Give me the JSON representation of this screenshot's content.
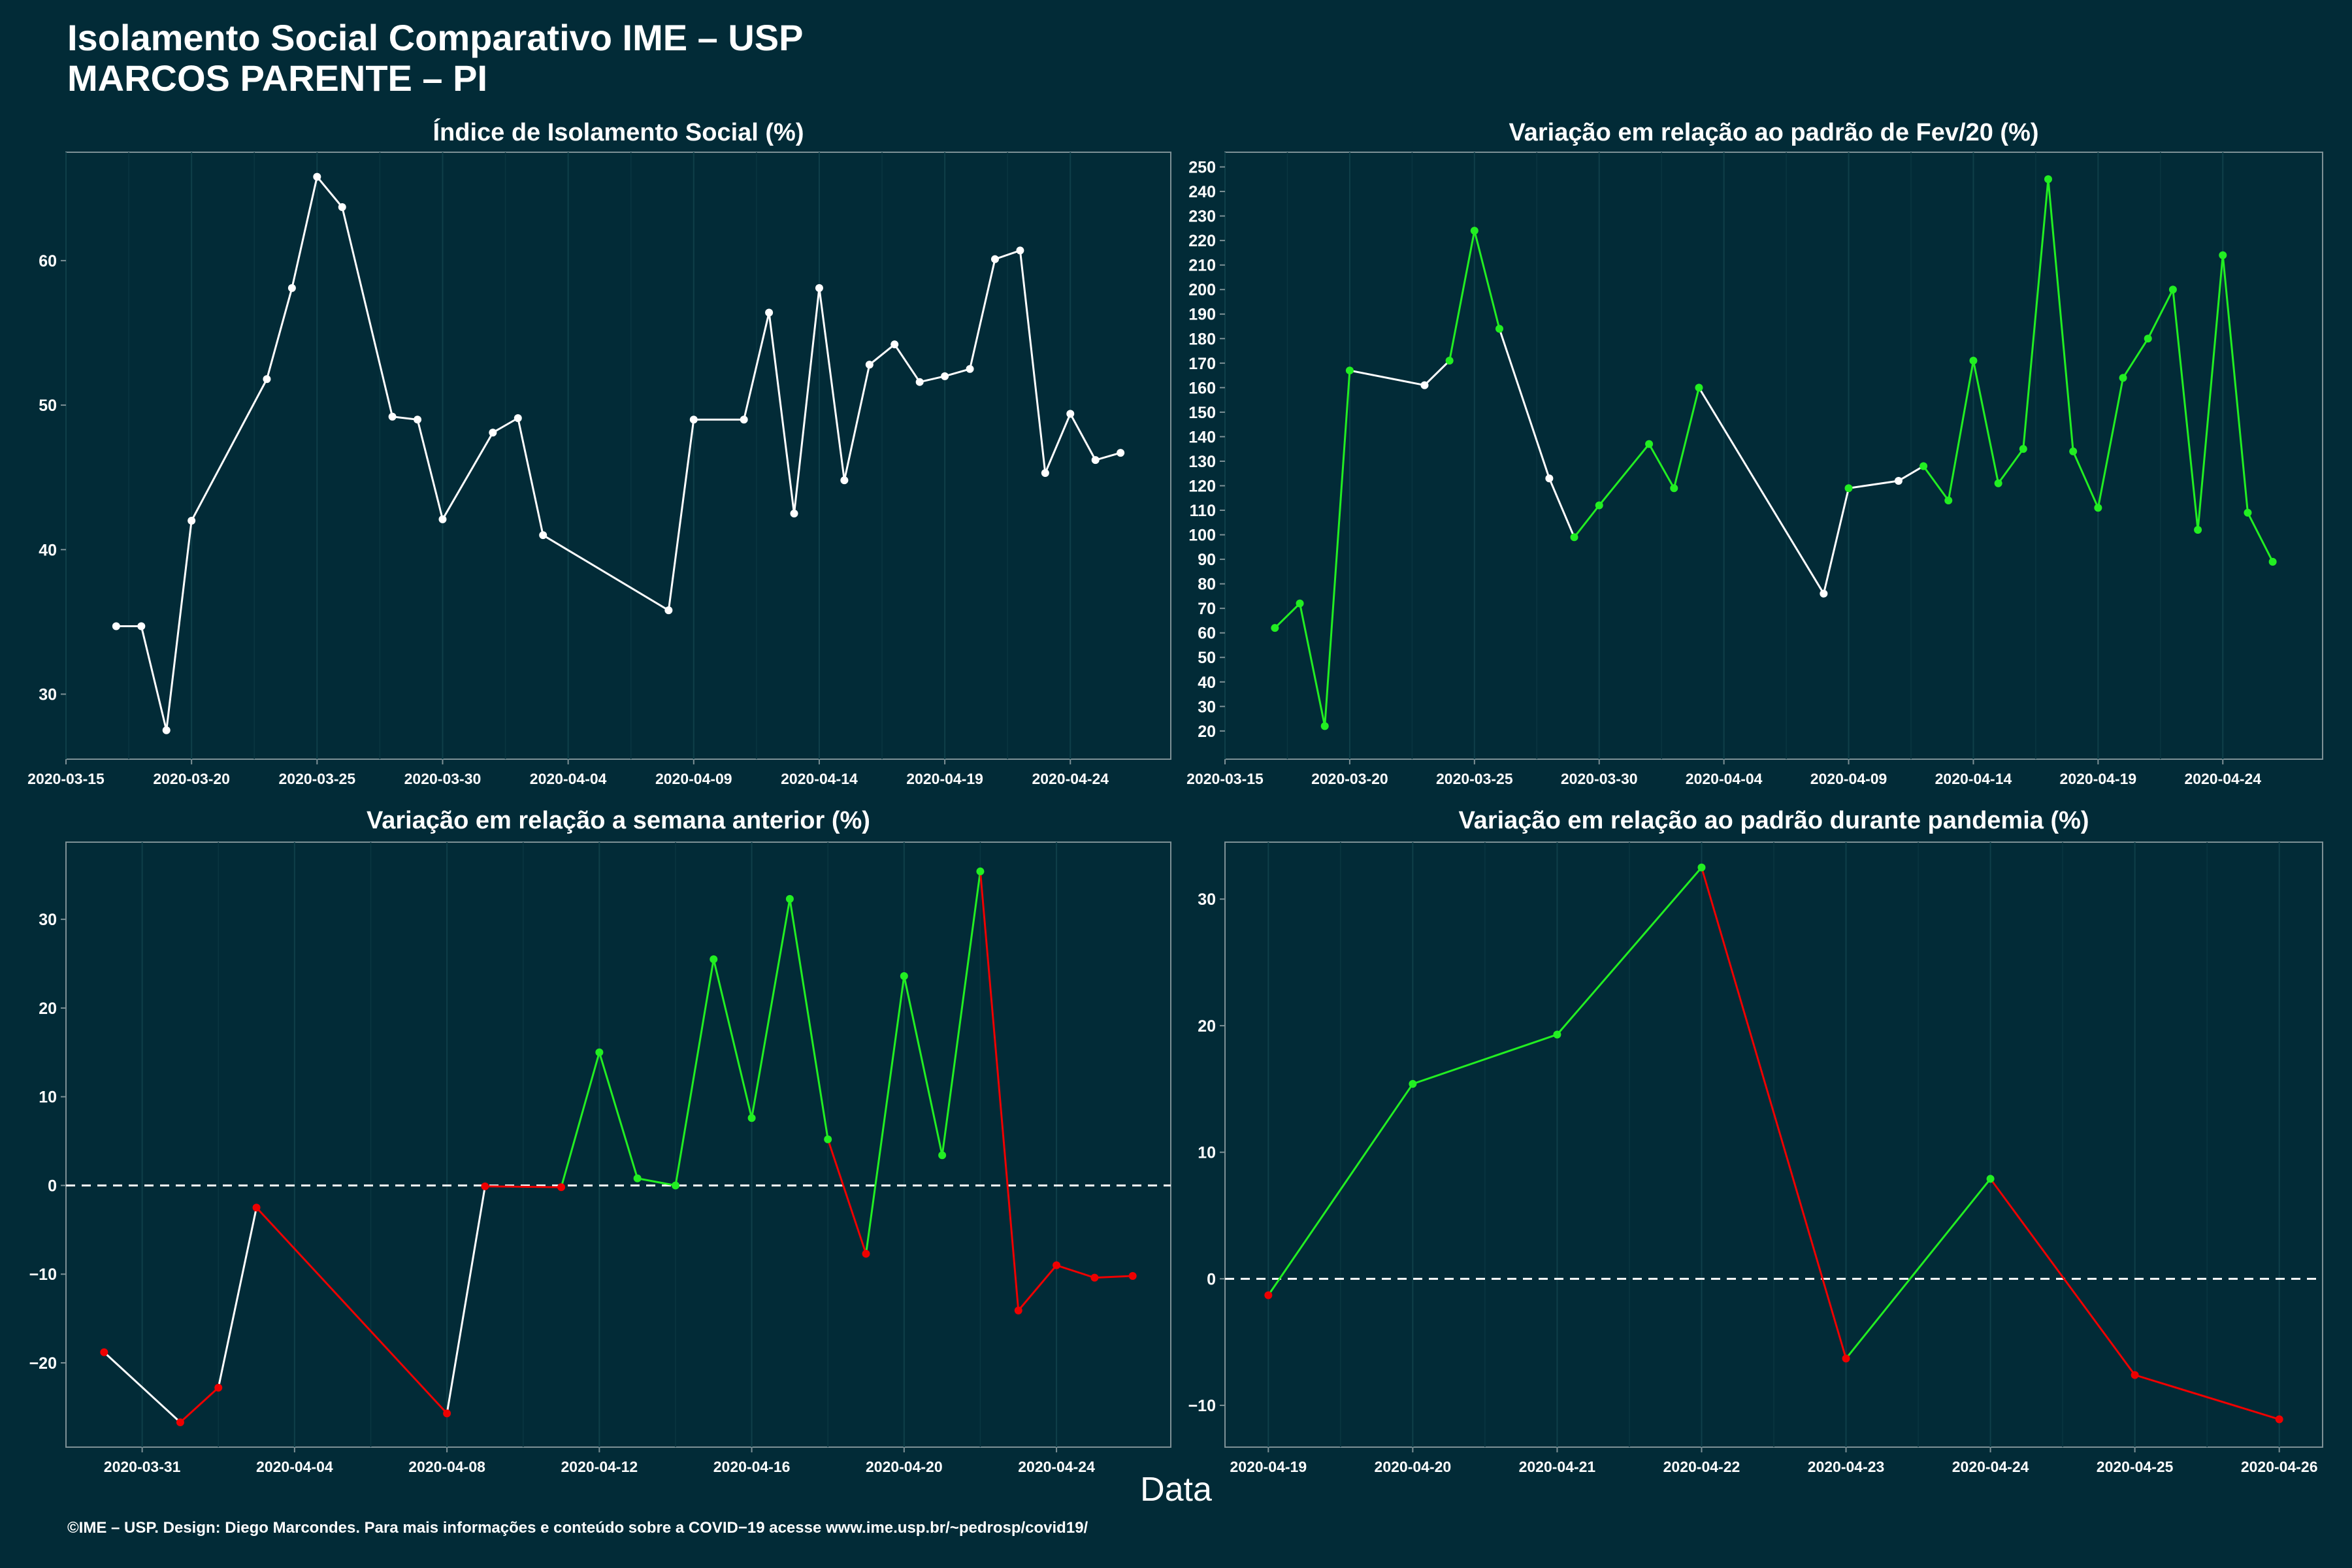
{
  "title_line1": "Isolamento Social Comparativo IME – USP",
  "title_line2": "MARCOS PARENTE – PI",
  "xlabel": "Data",
  "footer": "©IME – USP. Design: Diego Marcondes. Para mais informações e conteúdo sobre a COVID−19 acesse www.ime.usp.br/~pedrosp/covid19/",
  "colors": {
    "background": "#022b37",
    "white_line": "#ffffff",
    "increase": "#22ee22",
    "decrease": "#ee0000"
  },
  "chart_data": [
    {
      "type": "line",
      "title": "Índice de Isolamento Social (%)",
      "xlim": [
        "2020-03-15",
        "2020-04-28"
      ],
      "ylim": [
        25.5,
        67.5
      ],
      "xticks": [
        "2020-03-15",
        "2020-03-20",
        "2020-03-25",
        "2020-03-30",
        "2020-04-04",
        "2020-04-09",
        "2020-04-14",
        "2020-04-19",
        "2020-04-24"
      ],
      "yticks": [
        30,
        40,
        50,
        60
      ],
      "points": [
        {
          "x": "2020-03-17",
          "y": 34.7,
          "c": "w"
        },
        {
          "x": "2020-03-18",
          "y": 34.7,
          "c": "w"
        },
        {
          "x": "2020-03-19",
          "y": 27.5,
          "c": "w"
        },
        {
          "x": "2020-03-20",
          "y": 42.0,
          "c": "w"
        },
        {
          "x": "2020-03-23",
          "y": 51.8,
          "c": "w"
        },
        {
          "x": "2020-03-24",
          "y": 58.1,
          "c": "w"
        },
        {
          "x": "2020-03-25",
          "y": 65.8,
          "c": "w"
        },
        {
          "x": "2020-03-26",
          "y": 63.7,
          "c": "w"
        },
        {
          "x": "2020-03-28",
          "y": 49.2,
          "c": "w"
        },
        {
          "x": "2020-03-29",
          "y": 49.0,
          "c": "w"
        },
        {
          "x": "2020-03-30",
          "y": 42.1,
          "c": "w"
        },
        {
          "x": "2020-04-01",
          "y": 48.1,
          "c": "w"
        },
        {
          "x": "2020-04-02",
          "y": 49.1,
          "c": "w"
        },
        {
          "x": "2020-04-03",
          "y": 41.0,
          "c": "w"
        },
        {
          "x": "2020-04-08",
          "y": 35.8,
          "c": "w"
        },
        {
          "x": "2020-04-09",
          "y": 49.0,
          "c": "w"
        },
        {
          "x": "2020-04-11",
          "y": 49.0,
          "c": "w"
        },
        {
          "x": "2020-04-12",
          "y": 56.4,
          "c": "w"
        },
        {
          "x": "2020-04-13",
          "y": 42.5,
          "c": "w"
        },
        {
          "x": "2020-04-14",
          "y": 58.1,
          "c": "w"
        },
        {
          "x": "2020-04-15",
          "y": 44.8,
          "c": "w"
        },
        {
          "x": "2020-04-16",
          "y": 52.8,
          "c": "w"
        },
        {
          "x": "2020-04-17",
          "y": 54.2,
          "c": "w"
        },
        {
          "x": "2020-04-18",
          "y": 51.6,
          "c": "w"
        },
        {
          "x": "2020-04-19",
          "y": 52.0,
          "c": "w"
        },
        {
          "x": "2020-04-20",
          "y": 52.5,
          "c": "w"
        },
        {
          "x": "2020-04-21",
          "y": 60.1,
          "c": "w"
        },
        {
          "x": "2020-04-22",
          "y": 60.7,
          "c": "w"
        },
        {
          "x": "2020-04-23",
          "y": 45.3,
          "c": "w"
        },
        {
          "x": "2020-04-24",
          "y": 49.4,
          "c": "w"
        },
        {
          "x": "2020-04-25",
          "y": 46.2,
          "c": "w"
        },
        {
          "x": "2020-04-26",
          "y": 46.7,
          "c": "w"
        }
      ],
      "hline": null
    },
    {
      "type": "line",
      "title": "Variação em relação ao padrão de Fev/20 (%)",
      "xlim": [
        "2020-03-15",
        "2020-04-28"
      ],
      "ylim": [
        8.5,
        256
      ],
      "xticks": [
        "2020-03-15",
        "2020-03-20",
        "2020-03-25",
        "2020-03-30",
        "2020-04-04",
        "2020-04-09",
        "2020-04-14",
        "2020-04-19",
        "2020-04-24"
      ],
      "yticks": [
        20,
        30,
        40,
        50,
        60,
        70,
        80,
        90,
        100,
        110,
        120,
        130,
        140,
        150,
        160,
        170,
        180,
        190,
        200,
        210,
        220,
        230,
        240,
        250
      ],
      "points": [
        {
          "x": "2020-03-17",
          "y": 62,
          "c": "g"
        },
        {
          "x": "2020-03-18",
          "y": 72,
          "c": "g"
        },
        {
          "x": "2020-03-19",
          "y": 22,
          "c": "g"
        },
        {
          "x": "2020-03-20",
          "y": 167,
          "c": "g"
        },
        {
          "x": "2020-03-23",
          "y": 161,
          "c": "w"
        },
        {
          "x": "2020-03-24",
          "y": 171,
          "c": "g"
        },
        {
          "x": "2020-03-25",
          "y": 224,
          "c": "g"
        },
        {
          "x": "2020-03-26",
          "y": 184,
          "c": "g"
        },
        {
          "x": "2020-03-28",
          "y": 123,
          "c": "w"
        },
        {
          "x": "2020-03-29",
          "y": 99,
          "c": "g"
        },
        {
          "x": "2020-03-30",
          "y": 112,
          "c": "g"
        },
        {
          "x": "2020-04-01",
          "y": 137,
          "c": "g"
        },
        {
          "x": "2020-04-02",
          "y": 119,
          "c": "g"
        },
        {
          "x": "2020-04-03",
          "y": 160,
          "c": "g"
        },
        {
          "x": "2020-04-08",
          "y": 76,
          "c": "w"
        },
        {
          "x": "2020-04-09",
          "y": 119,
          "c": "g"
        },
        {
          "x": "2020-04-11",
          "y": 122,
          "c": "w"
        },
        {
          "x": "2020-04-12",
          "y": 128,
          "c": "g"
        },
        {
          "x": "2020-04-13",
          "y": 114,
          "c": "g"
        },
        {
          "x": "2020-04-14",
          "y": 171,
          "c": "g"
        },
        {
          "x": "2020-04-15",
          "y": 121,
          "c": "g"
        },
        {
          "x": "2020-04-16",
          "y": 135,
          "c": "g"
        },
        {
          "x": "2020-04-17",
          "y": 245,
          "c": "g"
        },
        {
          "x": "2020-04-18",
          "y": 134,
          "c": "g"
        },
        {
          "x": "2020-04-19",
          "y": 111,
          "c": "g"
        },
        {
          "x": "2020-04-20",
          "y": 164,
          "c": "g"
        },
        {
          "x": "2020-04-21",
          "y": 180,
          "c": "g"
        },
        {
          "x": "2020-04-22",
          "y": 200,
          "c": "g"
        },
        {
          "x": "2020-04-23",
          "y": 102,
          "c": "g"
        },
        {
          "x": "2020-04-24",
          "y": 214,
          "c": "g"
        },
        {
          "x": "2020-04-25",
          "y": 109,
          "c": "g"
        },
        {
          "x": "2020-04-26",
          "y": 89,
          "c": "g"
        }
      ],
      "hline": null
    },
    {
      "type": "line",
      "title": "Variação em relação a semana anterior (%)",
      "xlim": [
        "2020-03-29",
        "2020-04-27"
      ],
      "ylim": [
        -29.5,
        38.7
      ],
      "xticks": [
        "2020-03-31",
        "2020-04-04",
        "2020-04-08",
        "2020-04-12",
        "2020-04-16",
        "2020-04-20",
        "2020-04-24"
      ],
      "yticks": [
        -20,
        -10,
        0,
        10,
        20,
        30
      ],
      "points": [
        {
          "x": "2020-03-30",
          "y": -18.8,
          "c": "r"
        },
        {
          "x": "2020-04-01",
          "y": -26.7,
          "c": "r"
        },
        {
          "x": "2020-04-02",
          "y": -22.8,
          "c": "r"
        },
        {
          "x": "2020-04-03",
          "y": -2.5,
          "c": "r"
        },
        {
          "x": "2020-04-08",
          "y": -25.7,
          "c": "r"
        },
        {
          "x": "2020-04-09",
          "y": -0.1,
          "c": "r"
        },
        {
          "x": "2020-04-11",
          "y": -0.2,
          "c": "r"
        },
        {
          "x": "2020-04-12",
          "y": 15.0,
          "c": "g"
        },
        {
          "x": "2020-04-13",
          "y": 0.8,
          "c": "g"
        },
        {
          "x": "2020-04-14",
          "y": 0.0,
          "c": "g"
        },
        {
          "x": "2020-04-15",
          "y": 25.5,
          "c": "g"
        },
        {
          "x": "2020-04-16",
          "y": 7.6,
          "c": "g"
        },
        {
          "x": "2020-04-17",
          "y": 32.3,
          "c": "g"
        },
        {
          "x": "2020-04-18",
          "y": 5.2,
          "c": "g"
        },
        {
          "x": "2020-04-19",
          "y": -7.7,
          "c": "r"
        },
        {
          "x": "2020-04-20",
          "y": 23.6,
          "c": "g"
        },
        {
          "x": "2020-04-21",
          "y": 3.4,
          "c": "g"
        },
        {
          "x": "2020-04-22",
          "y": 35.4,
          "c": "g"
        },
        {
          "x": "2020-04-23",
          "y": -14.1,
          "c": "r"
        },
        {
          "x": "2020-04-24",
          "y": -9.0,
          "c": "r"
        },
        {
          "x": "2020-04-25",
          "y": -10.4,
          "c": "r"
        },
        {
          "x": "2020-04-26",
          "y": -10.2,
          "c": "r"
        }
      ],
      "segment_colors": [
        "w",
        "r",
        "w",
        "r",
        "w",
        "r",
        "g",
        "g",
        "g",
        "g",
        "g",
        "g",
        "g",
        "r",
        "g",
        "g",
        "g",
        "r",
        "r",
        "r",
        "r"
      ],
      "hline": 0
    },
    {
      "type": "line",
      "title": "Variação em relação ao padrão durante pandemia (%)",
      "xlim": [
        "2020-04-18.7",
        "2020-04-26.3"
      ],
      "ylim": [
        -13.3,
        34.5
      ],
      "xticks": [
        "2020-04-19",
        "2020-04-20",
        "2020-04-21",
        "2020-04-22",
        "2020-04-23",
        "2020-04-24",
        "2020-04-25",
        "2020-04-26"
      ],
      "yticks": [
        -10,
        0,
        10,
        20,
        30
      ],
      "points": [
        {
          "x": "2020-04-19",
          "y": -1.3,
          "c": "r"
        },
        {
          "x": "2020-04-20",
          "y": 15.4,
          "c": "g"
        },
        {
          "x": "2020-04-21",
          "y": 19.3,
          "c": "g"
        },
        {
          "x": "2020-04-22",
          "y": 32.5,
          "c": "g"
        },
        {
          "x": "2020-04-23",
          "y": -6.3,
          "c": "r"
        },
        {
          "x": "2020-04-24",
          "y": 7.9,
          "c": "g"
        },
        {
          "x": "2020-04-25",
          "y": -7.6,
          "c": "r"
        },
        {
          "x": "2020-04-26",
          "y": -11.1,
          "c": "r"
        }
      ],
      "segment_colors": [
        "g",
        "g",
        "g",
        "r",
        "g",
        "r",
        "r"
      ],
      "hline": 0
    }
  ]
}
